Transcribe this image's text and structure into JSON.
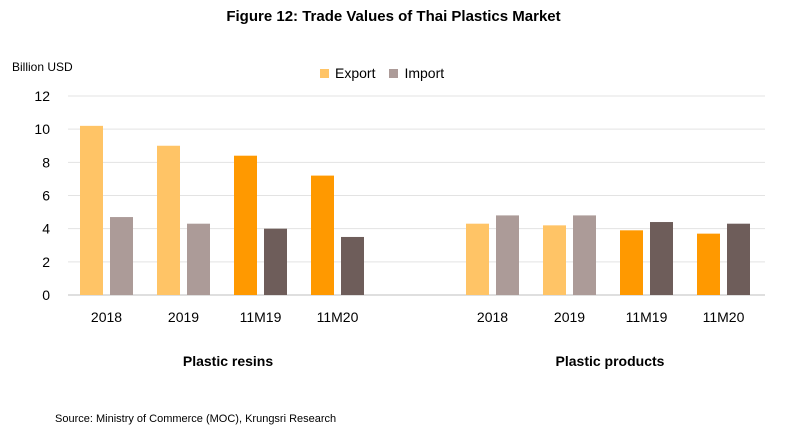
{
  "title": "Figure 12: Trade Values of Thai Plastics Market",
  "unit": "Billion USD",
  "source": "Source: Ministry of Commerce (MOC), Krungsri Research",
  "legend": [
    {
      "label": "Export",
      "color": "#FFC466"
    },
    {
      "label": "Import",
      "color": "#AC9B98"
    }
  ],
  "chart_data": {
    "type": "bar",
    "ylim": [
      0,
      12
    ],
    "yticks": [
      0,
      2,
      4,
      6,
      8,
      10,
      12
    ],
    "grid": true,
    "legend_position": "top-center",
    "groups": [
      {
        "label": "Plastic resins",
        "categories": [
          "2018",
          "2019",
          "11M19",
          "11M20"
        ],
        "export": [
          10.2,
          9.0,
          8.4,
          7.2
        ],
        "import": [
          4.7,
          4.3,
          4.0,
          3.5
        ],
        "export_colors": [
          "#FFC466",
          "#FFC466",
          "#FF9900",
          "#FF9900"
        ],
        "import_colors": [
          "#AC9B98",
          "#AC9B98",
          "#6E5D5A",
          "#6E5D5A"
        ]
      },
      {
        "label": "Plastic products",
        "categories": [
          "2018",
          "2019",
          "11M19",
          "11M20"
        ],
        "export": [
          4.3,
          4.2,
          3.9,
          3.7
        ],
        "import": [
          4.8,
          4.8,
          4.4,
          4.3
        ],
        "export_colors": [
          "#FFC466",
          "#FFC466",
          "#FF9900",
          "#FF9900"
        ],
        "import_colors": [
          "#AC9B98",
          "#AC9B98",
          "#6E5D5A",
          "#6E5D5A"
        ]
      }
    ]
  }
}
